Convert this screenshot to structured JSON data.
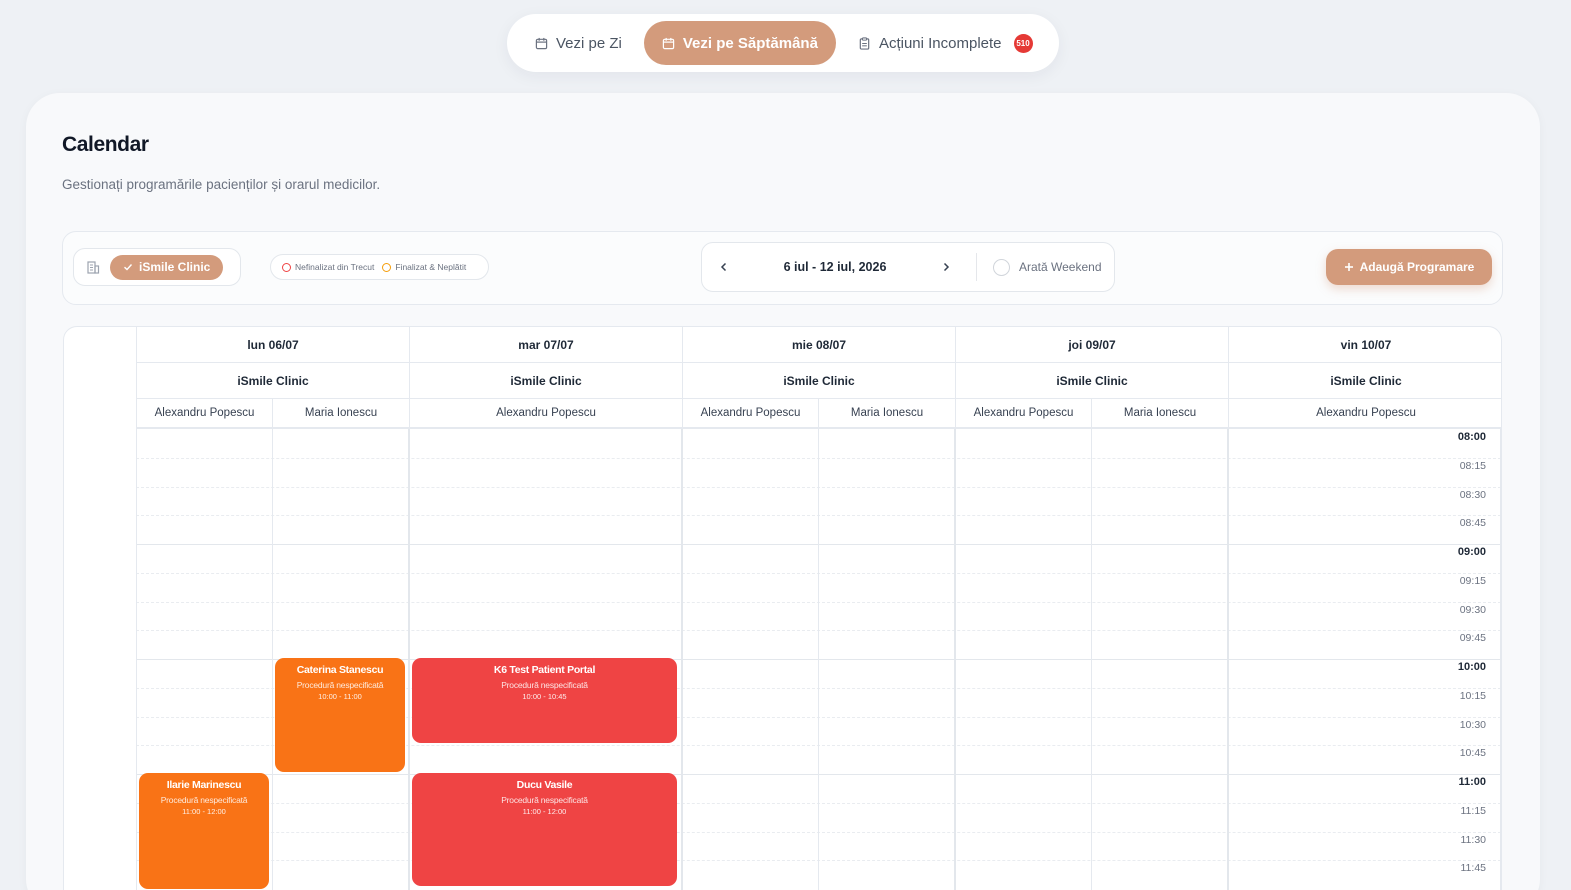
{
  "nav": {
    "tabs": [
      {
        "label": "Vezi pe Zi",
        "icon": "calendar-icon",
        "active": false
      },
      {
        "label": "Vezi pe Săptămână",
        "icon": "calendar-icon",
        "active": true
      },
      {
        "label": "Acțiuni Incomplete",
        "icon": "clipboard-icon",
        "active": false,
        "badge": "510"
      }
    ]
  },
  "page": {
    "title": "Calendar",
    "subtitle": "Gestionați programările pacienților și orarul medicilor."
  },
  "toolbar": {
    "clinic_icon": "building-icon",
    "clinic_label": "iSmile Clinic",
    "legend": [
      {
        "label": "Nefinalizat din Trecut",
        "color": "#ef4444"
      },
      {
        "label": "Finalizat & Neplătit",
        "color": "#f59e0b"
      }
    ],
    "date_range": "6 iul - 12 iul, 2026",
    "weekend_label": "Arată Weekend",
    "add_label": "Adaugă Programare"
  },
  "colors": {
    "accent": "#d39b7c",
    "event_orange": "#f97316",
    "event_red": "#ef4444"
  },
  "calendar": {
    "days": [
      {
        "label": "lun 06/07",
        "clinic": "iSmile Clinic",
        "doctors": [
          "Alexandru Popescu",
          "Maria Ionescu"
        ]
      },
      {
        "label": "mar 07/07",
        "clinic": "iSmile Clinic",
        "doctors": [
          "Alexandru Popescu"
        ]
      },
      {
        "label": "mie 08/07",
        "clinic": "iSmile Clinic",
        "doctors": [
          "Alexandru Popescu",
          "Maria Ionescu"
        ]
      },
      {
        "label": "joi 09/07",
        "clinic": "iSmile Clinic",
        "doctors": [
          "Alexandru Popescu",
          "Maria Ionescu"
        ]
      },
      {
        "label": "vin 10/07",
        "clinic": "iSmile Clinic",
        "doctors": [
          "Alexandru Popescu"
        ]
      }
    ],
    "times": [
      "08:00",
      "08:15",
      "08:30",
      "08:45",
      "09:00",
      "09:15",
      "09:30",
      "09:45",
      "10:00",
      "10:15",
      "10:30",
      "10:45",
      "11:00",
      "11:15",
      "11:30",
      "11:45"
    ],
    "events": [
      {
        "name": "Caterina Stanescu",
        "procedure": "Procedură nespecificată",
        "time": "10:00 - 11:00",
        "color": "orange",
        "day": 0,
        "doctor": 1
      },
      {
        "name": "K6 Test Patient Portal",
        "procedure": "Procedură nespecificată",
        "time": "10:00 - 10:45",
        "color": "red",
        "day": 1,
        "doctor": 0
      },
      {
        "name": "Ilarie Marinescu",
        "procedure": "Procedură nespecificată",
        "time": "11:00 - 12:00",
        "color": "orange",
        "day": 0,
        "doctor": 0
      },
      {
        "name": "Ducu Vasile",
        "procedure": "Procedură nespecificată",
        "time": "11:00 - 12:00",
        "color": "red",
        "day": 1,
        "doctor": 0
      }
    ]
  }
}
